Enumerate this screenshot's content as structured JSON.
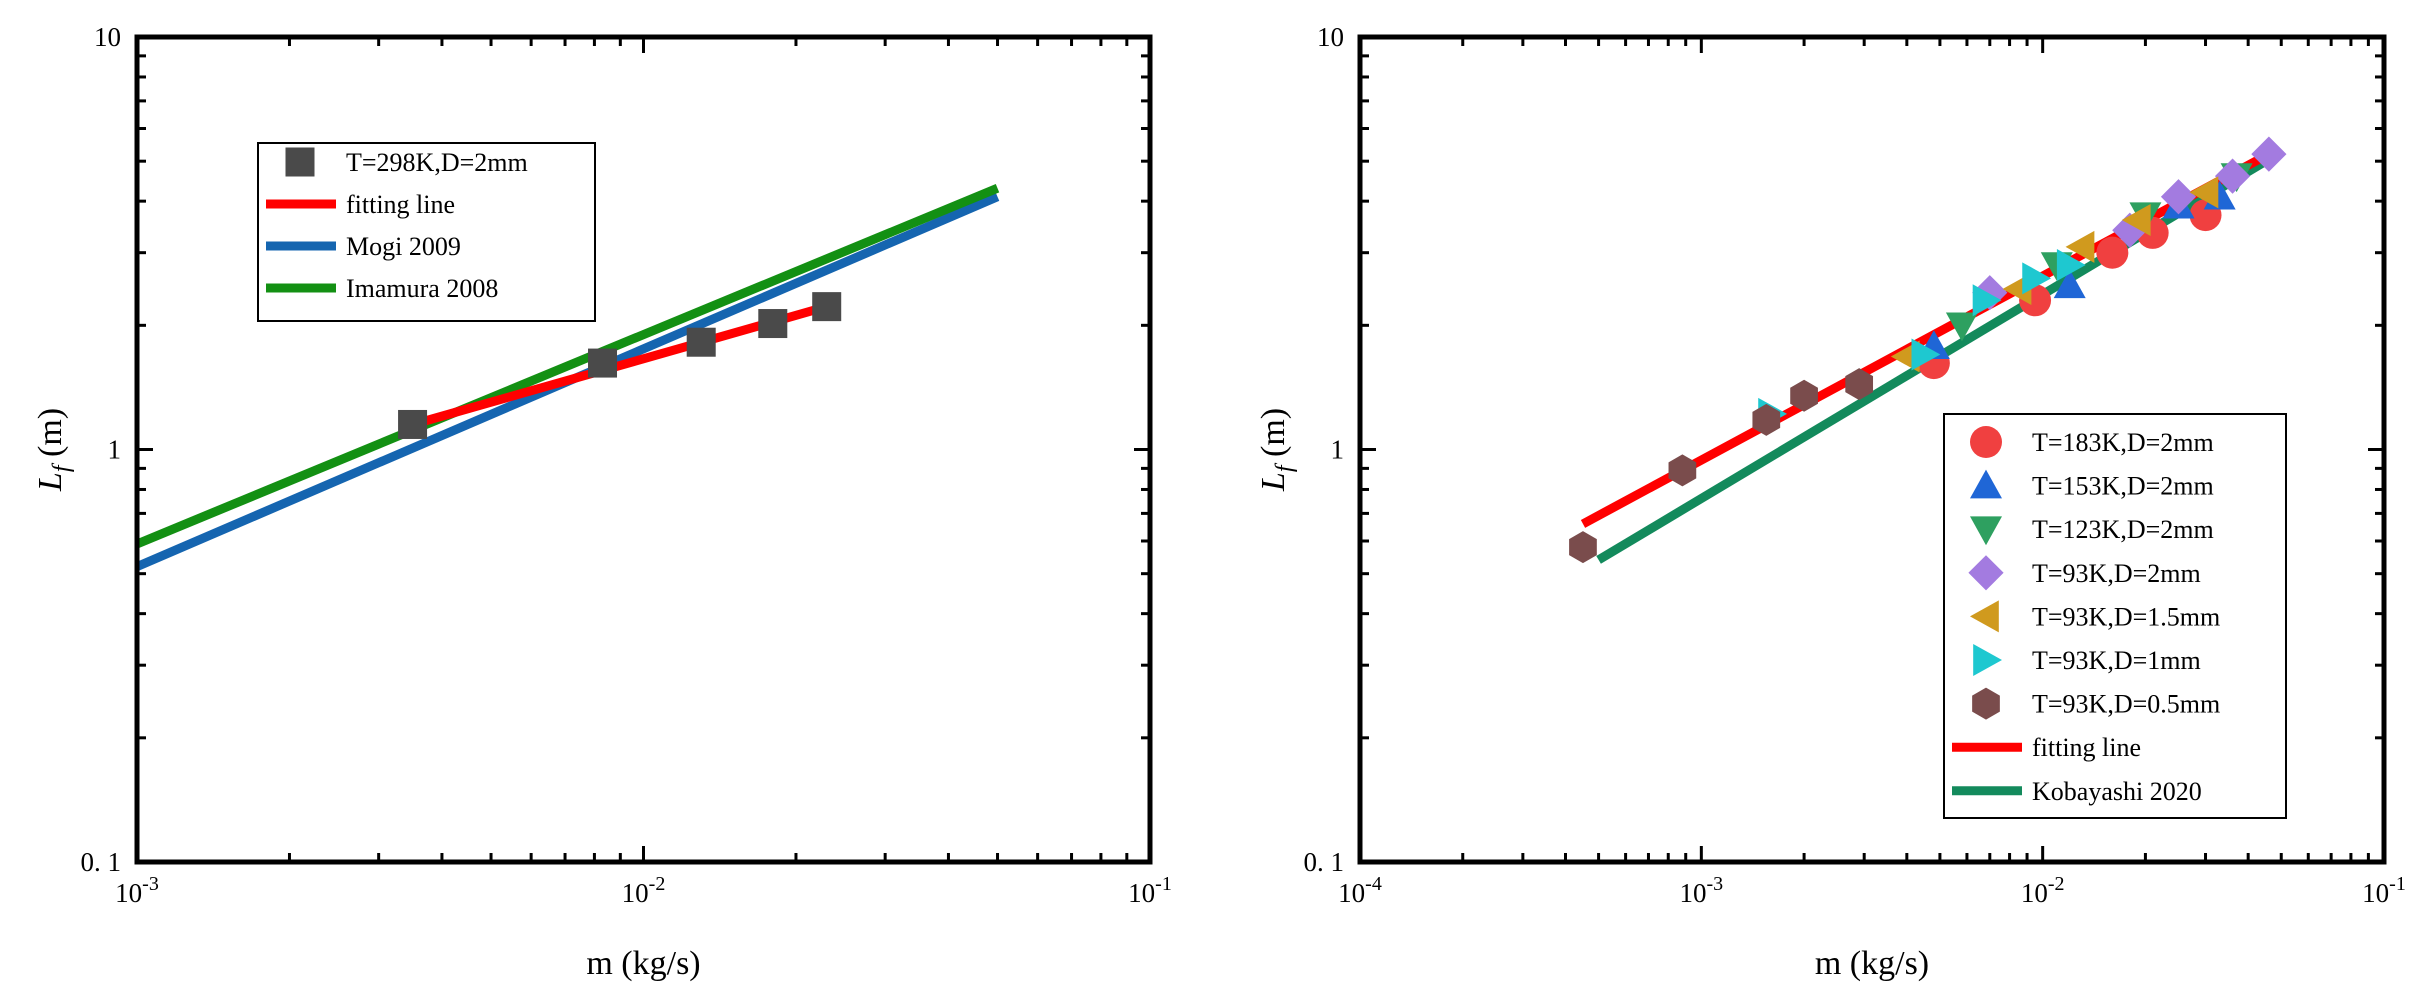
{
  "chart_data": [
    {
      "type": "scatter",
      "id": "left",
      "xscale": "log",
      "yscale": "log",
      "xlim": [
        0.001,
        0.1
      ],
      "ylim": [
        0.1,
        10
      ],
      "xlabel": "m (kg/s)",
      "ylabel_main": "L",
      "ylabel_sub": "f",
      "ylabel_unit": " (m)",
      "x_ticks": [
        {
          "value": 0.001,
          "base": "10",
          "exp": "-3"
        },
        {
          "value": 0.01,
          "base": "10",
          "exp": "-2"
        },
        {
          "value": 0.1,
          "base": "10",
          "exp": "-1"
        }
      ],
      "y_ticks": [
        {
          "value": 0.1,
          "label": "0. 1"
        },
        {
          "value": 1,
          "label": "1"
        },
        {
          "value": 10,
          "label": "10"
        }
      ],
      "grid": false,
      "legend_position": "top-left",
      "series": [
        {
          "name": "T=298K,D=2mm",
          "kind": "markers",
          "marker": "square",
          "color": "#4a4a4a",
          "points": [
            [
              0.0035,
              1.15
            ],
            [
              0.0083,
              1.62
            ],
            [
              0.013,
              1.82
            ],
            [
              0.018,
              2.02
            ],
            [
              0.023,
              2.22
            ]
          ]
        },
        {
          "name": "fitting line",
          "kind": "line",
          "color": "#ff0000",
          "points": [
            [
              0.0035,
              1.15
            ],
            [
              0.023,
              2.22
            ]
          ]
        },
        {
          "name": "Mogi 2009",
          "kind": "line",
          "color": "#1565b0",
          "points": [
            [
              0.001,
              0.52
            ],
            [
              0.05,
              4.1
            ]
          ]
        },
        {
          "name": "Imamura 2008",
          "kind": "line",
          "color": "#139013",
          "points": [
            [
              0.001,
              0.59
            ],
            [
              0.05,
              4.3
            ]
          ]
        }
      ]
    },
    {
      "type": "scatter",
      "id": "right",
      "xscale": "log",
      "yscale": "log",
      "xlim": [
        0.0001,
        0.1
      ],
      "ylim": [
        0.1,
        10
      ],
      "xlabel": "m (kg/s)",
      "ylabel_main": "L",
      "ylabel_sub": "f",
      "ylabel_unit": " (m)",
      "x_ticks": [
        {
          "value": 0.0001,
          "base": "10",
          "exp": "-4"
        },
        {
          "value": 0.001,
          "base": "10",
          "exp": "-3"
        },
        {
          "value": 0.01,
          "base": "10",
          "exp": "-2"
        },
        {
          "value": 0.1,
          "base": "10",
          "exp": "-1"
        }
      ],
      "y_ticks": [
        {
          "value": 0.1,
          "label": "0. 1"
        },
        {
          "value": 1,
          "label": "1"
        },
        {
          "value": 10,
          "label": "10"
        }
      ],
      "grid": false,
      "legend_position": "bottom-right",
      "series": [
        {
          "name": "T=183K,D=2mm",
          "kind": "markers",
          "marker": "circle",
          "color": "#f04040",
          "points": [
            [
              0.0048,
              1.62
            ],
            [
              0.0095,
              2.3
            ],
            [
              0.016,
              3.0
            ],
            [
              0.021,
              3.35
            ],
            [
              0.03,
              3.7
            ]
          ]
        },
        {
          "name": "T=153K,D=2mm",
          "kind": "markers",
          "marker": "triangle-up",
          "color": "#1f66d6",
          "points": [
            [
              0.0048,
              1.78
            ],
            [
              0.012,
              2.5
            ],
            [
              0.025,
              3.9
            ],
            [
              0.033,
              4.1
            ]
          ]
        },
        {
          "name": "T=123K,D=2mm",
          "kind": "markers",
          "marker": "triangle-down",
          "color": "#2ea060",
          "points": [
            [
              0.0058,
              2.0
            ],
            [
              0.011,
              2.8
            ],
            [
              0.02,
              3.7
            ],
            [
              0.037,
              4.6
            ]
          ]
        },
        {
          "name": "T=93K,D=2mm",
          "kind": "markers",
          "marker": "diamond",
          "color": "#a37be0",
          "points": [
            [
              0.007,
              2.4
            ],
            [
              0.018,
              3.4
            ],
            [
              0.025,
              4.1
            ],
            [
              0.036,
              4.6
            ],
            [
              0.046,
              5.2
            ]
          ]
        },
        {
          "name": "T=93K,D=1.5mm",
          "kind": "markers",
          "marker": "triangle-left",
          "color": "#d09a1e",
          "points": [
            [
              0.004,
              1.68
            ],
            [
              0.0085,
              2.45
            ],
            [
              0.013,
              3.1
            ],
            [
              0.019,
              3.6
            ],
            [
              0.03,
              4.2
            ]
          ]
        },
        {
          "name": "T=93K,D=1mm",
          "kind": "markers",
          "marker": "triangle-right",
          "color": "#1ec8d0",
          "points": [
            [
              0.0016,
              1.22
            ],
            [
              0.0045,
              1.7
            ],
            [
              0.0068,
              2.3
            ],
            [
              0.0095,
              2.6
            ],
            [
              0.012,
              2.8
            ]
          ]
        },
        {
          "name": "T=93K,D=0.5mm",
          "kind": "markers",
          "marker": "hexagon",
          "color": "#7a4c4c",
          "points": [
            [
              0.00045,
              0.58
            ],
            [
              0.00088,
              0.89
            ],
            [
              0.00155,
              1.18
            ],
            [
              0.002,
              1.35
            ],
            [
              0.0029,
              1.44
            ]
          ]
        },
        {
          "name": "fitting line",
          "kind": "line",
          "color": "#ff0000",
          "points": [
            [
              0.00045,
              0.66
            ],
            [
              0.046,
              5.2
            ]
          ]
        },
        {
          "name": "Kobayashi 2020",
          "kind": "line",
          "color": "#138a5c",
          "points": [
            [
              0.0005,
              0.54
            ],
            [
              0.045,
              5.0
            ]
          ]
        }
      ]
    }
  ]
}
